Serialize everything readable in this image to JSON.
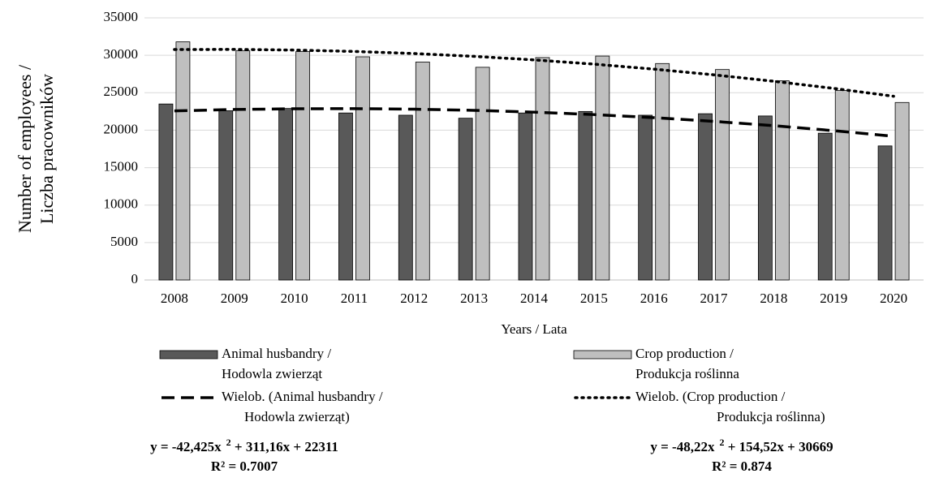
{
  "chart_data": {
    "type": "bar",
    "y_title": [
      "Number of employees /",
      "Liczba pracowników"
    ],
    "x_title": "Years / Lata",
    "categories": [
      "2008",
      "2009",
      "2010",
      "2011",
      "2012",
      "2013",
      "2014",
      "2015",
      "2016",
      "2017",
      "2018",
      "2019",
      "2020"
    ],
    "ylim": [
      0,
      35000
    ],
    "yticks": [
      0,
      5000,
      10000,
      15000,
      20000,
      25000,
      30000,
      35000
    ],
    "grid": true,
    "series": [
      {
        "name": [
          "Animal husbandry /",
          "Hodowla zwierząt"
        ],
        "color": "#595959",
        "values": [
          23500,
          22600,
          22900,
          22300,
          22000,
          21600,
          22300,
          22500,
          22000,
          22200,
          21900,
          19600,
          17900
        ]
      },
      {
        "name": [
          "Crop production /",
          "Produkcja roślinna"
        ],
        "color": "#bfbfbf",
        "values": [
          31800,
          30600,
          30500,
          29800,
          29100,
          28400,
          29700,
          29900,
          28900,
          28100,
          26600,
          25300,
          23700
        ]
      }
    ],
    "trendlines": [
      {
        "name": [
          "Wielob. (Animal husbandry /",
          "Hodowla zwierząt)"
        ],
        "style": "dashed",
        "color": "#000000",
        "values": [
          22580,
          22764,
          22863,
          22877,
          22806,
          22651,
          22410,
          22085,
          21675,
          21180,
          20600,
          19936,
          19186
        ],
        "equation": {
          "prefix": "y =  -42,425x",
          "power": "2",
          "suffix": " + 311,16x + 22311"
        },
        "r2": "R² = 0.7007"
      },
      {
        "name": [
          "Wielob. (Crop production /",
          "Produkcja roślinna)"
        ],
        "style": "dotted",
        "color": "#000000",
        "values": [
          30775,
          30785,
          30699,
          30516,
          30236,
          29860,
          29388,
          28819,
          28154,
          27392,
          26534,
          25580,
          24529
        ],
        "equation": {
          "prefix": "y =  -48,22x",
          "power": "2",
          "suffix": " + 154,52x + 30669"
        },
        "r2": "R² = 0.874"
      }
    ]
  }
}
